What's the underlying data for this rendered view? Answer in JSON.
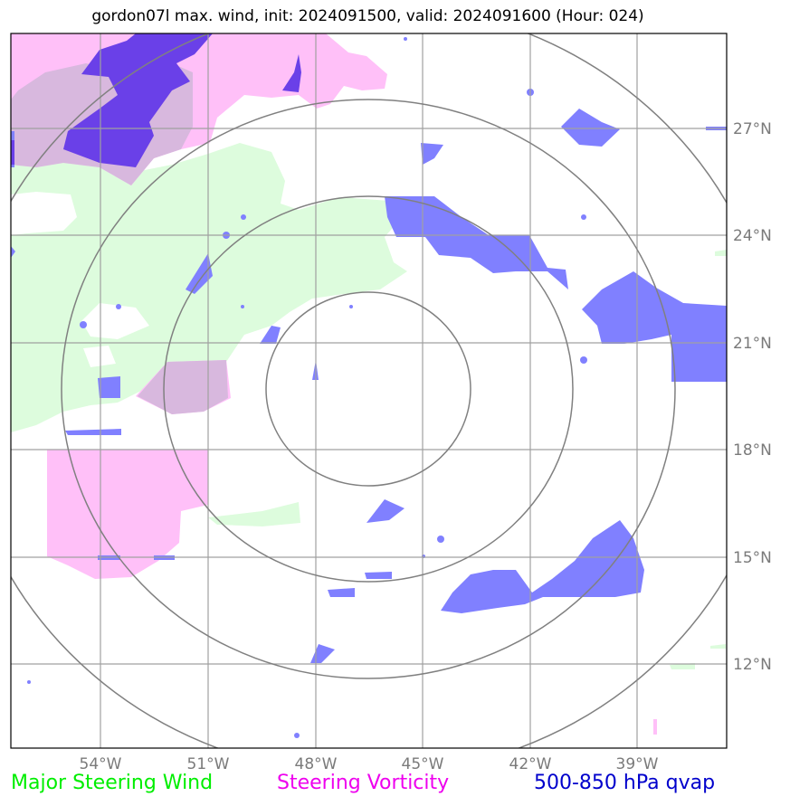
{
  "title": "gordon07l max. wind, init: 2024091500, valid: 2024091600 (Hour: 024)",
  "map": {
    "lon_labels": [
      "54°W",
      "51°W",
      "48°W",
      "45°W",
      "42°W",
      "39°W"
    ],
    "lat_labels": [
      "27°N",
      "24°N",
      "21°N",
      "18°N",
      "15°N",
      "12°N"
    ],
    "colors": {
      "steering_wind": "#ddfcdd",
      "steering_vorticity": "#ffc0f8",
      "qvap": "#8080ff",
      "overlap": "#d8b8de",
      "qvap_dark": "#6a40e8",
      "grid": "#a0a0a0",
      "range_rings": "#808080"
    },
    "range_ring_count": 4
  },
  "legend": {
    "steering_wind": "Major Steering Wind",
    "steering_vorticity": "Steering Vorticity",
    "qvap": "500-850 hPa qvap"
  }
}
